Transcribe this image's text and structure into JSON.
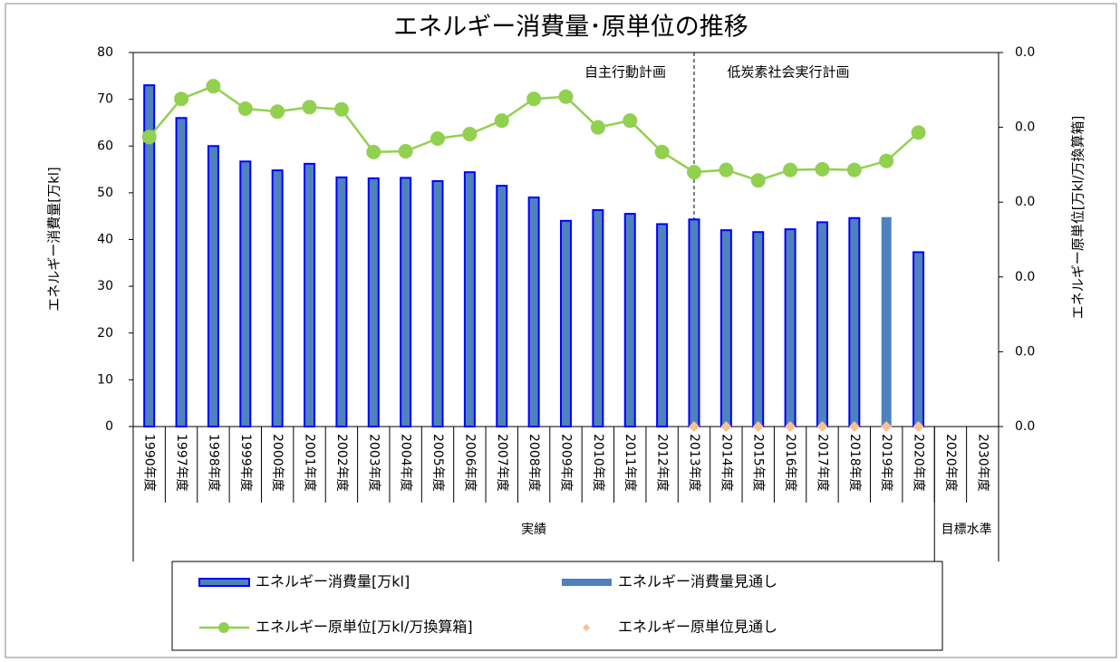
{
  "chart_data": {
    "type": "combo",
    "title": "エネルギー消費量･原単位の推移",
    "y_label": "エネルギー消費量[万kl]",
    "y2_label": "エネルギー原単位[万kl/万換算箱]",
    "annotations": [
      "自主行動計画",
      "低炭素社会実行計画"
    ],
    "categories": [
      "1990年度",
      "1997年度",
      "1998年度",
      "1999年度",
      "2000年度",
      "2001年度",
      "2002年度",
      "2003年度",
      "2004年度",
      "2005年度",
      "2006年度",
      "2007年度",
      "2008年度",
      "2009年度",
      "2010年度",
      "2011年度",
      "2012年度",
      "2013年度",
      "2014年度",
      "2015年度",
      "2016年度",
      "2017年度",
      "2018年度",
      "2019年度",
      "2020年度",
      "2020年度",
      "2030年度"
    ],
    "groups": [
      {
        "label": "実績",
        "count": 25
      },
      {
        "label": "目標水準",
        "count": 2
      }
    ],
    "ylim": [
      0,
      80
    ],
    "yticks": [
      0,
      10,
      20,
      30,
      40,
      50,
      60,
      70,
      80
    ],
    "y2lim": [
      0,
      0.05
    ],
    "y2ticks": [
      {
        "value": 0,
        "label": "0.0"
      },
      {
        "value": 0.01,
        "label": "0.0"
      },
      {
        "value": 0.02,
        "label": "0.0"
      },
      {
        "value": 0.03,
        "label": "0.0"
      },
      {
        "value": 0.04,
        "label": "0.0"
      },
      {
        "value": 0.05,
        "label": "0.0"
      }
    ],
    "series": [
      {
        "name": "エネルギー消費量[万kl]",
        "type": "bar",
        "color": "#4f81bd",
        "edge": "#0000ff",
        "values": [
          73,
          66,
          60,
          56.7,
          54.8,
          56.2,
          53.3,
          53.1,
          53.2,
          52.5,
          54.4,
          51.5,
          49,
          44,
          46.3,
          45.5,
          43.3,
          44.3,
          42,
          41.6,
          42.2,
          43.7,
          44.6,
          null,
          37.3,
          null,
          null
        ]
      },
      {
        "name": "エネルギー消費量見通し",
        "type": "bar",
        "color": "#4f81bd",
        "values": [
          null,
          null,
          null,
          null,
          null,
          null,
          null,
          null,
          null,
          null,
          null,
          null,
          null,
          null,
          null,
          null,
          null,
          null,
          null,
          null,
          null,
          null,
          null,
          44.8,
          null,
          null,
          null
        ]
      },
      {
        "name": "エネルギー原単位[万kl/万換算箱]",
        "type": "line",
        "axis": "y2",
        "color": "#92d050",
        "values": [
          0.0387,
          0.0438,
          0.0455,
          0.0425,
          0.0421,
          0.0427,
          0.0424,
          0.0367,
          0.0368,
          0.0385,
          0.0391,
          0.0409,
          0.0438,
          0.0441,
          0.04,
          0.0409,
          0.0367,
          0.034,
          0.0343,
          0.0329,
          0.0343,
          0.0344,
          0.0343,
          0.0355,
          0.0393,
          null,
          null
        ]
      },
      {
        "name": "エネルギー原単位見通し",
        "type": "scatter",
        "axis": "y2",
        "color": "#fac090",
        "values": [
          null,
          null,
          null,
          null,
          null,
          null,
          null,
          null,
          null,
          null,
          null,
          null,
          null,
          null,
          null,
          null,
          null,
          0,
          0,
          0,
          0,
          0,
          0,
          0,
          0,
          null,
          null
        ]
      }
    ]
  }
}
